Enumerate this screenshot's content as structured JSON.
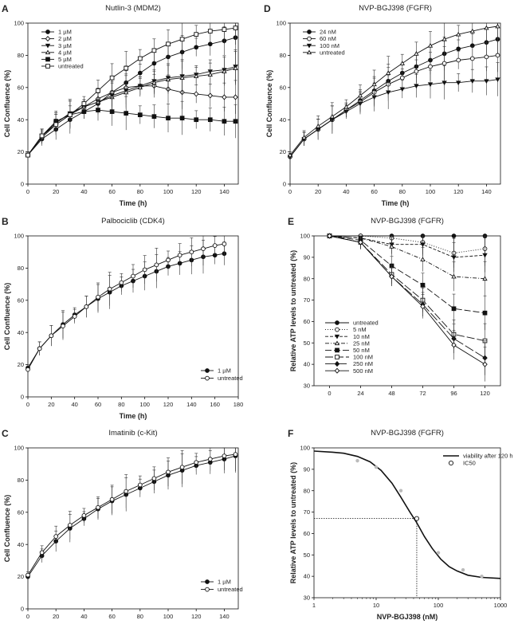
{
  "panels": [
    {
      "letter": "A",
      "chart_data": {
        "type": "line",
        "title": "Nutlin-3 (MDM2)",
        "xlabel": "Time (h)",
        "ylabel": "Cell Confluence (%)",
        "xlim": [
          0,
          150
        ],
        "ylim": [
          0,
          100
        ],
        "xticks": [
          0,
          20,
          40,
          60,
          80,
          100,
          120,
          140
        ],
        "yticks": [
          0,
          20,
          40,
          60,
          80,
          100
        ],
        "legend_position": "top-left",
        "series": [
          {
            "name": "1 µM",
            "marker": "circle-filled",
            "x": [
              0,
              10,
              20,
              30,
              40,
              50,
              60,
              70,
              80,
              90,
              100,
              110,
              120,
              130,
              140,
              148
            ],
            "y": [
              18,
              28,
              34,
              40,
              45,
              50,
              57,
              63,
              69,
              75,
              79,
              82,
              85,
              87,
              89,
              91
            ]
          },
          {
            "name": "2 µM",
            "marker": "diamond-open",
            "x": [
              0,
              10,
              20,
              30,
              40,
              50,
              60,
              70,
              80,
              90,
              100,
              110,
              120,
              130,
              140,
              148
            ],
            "y": [
              18,
              29,
              37,
              43,
              48,
              53,
              57,
              60,
              61,
              61,
              59,
              57,
              56,
              55,
              54,
              54
            ]
          },
          {
            "name": "3 µM",
            "marker": "triangle-down-filled",
            "x": [
              0,
              10,
              20,
              30,
              40,
              50,
              60,
              70,
              80,
              90,
              100,
              110,
              120,
              130,
              140,
              148
            ],
            "y": [
              18,
              30,
              38,
              44,
              48,
              51,
              55,
              58,
              61,
              64,
              66,
              67,
              68,
              70,
              71,
              73
            ]
          },
          {
            "name": "4 µM",
            "marker": "triangle-up-open",
            "x": [
              0,
              10,
              20,
              30,
              40,
              50,
              60,
              70,
              80,
              90,
              100,
              110,
              120,
              130,
              140,
              148
            ],
            "y": [
              18,
              30,
              38,
              44,
              48,
              51,
              54,
              57,
              60,
              63,
              65,
              66,
              67,
              68,
              70,
              72
            ]
          },
          {
            "name": "5 µM",
            "marker": "square-filled",
            "x": [
              0,
              10,
              20,
              30,
              40,
              50,
              60,
              70,
              80,
              90,
              100,
              110,
              120,
              130,
              140,
              148
            ],
            "y": [
              18,
              30,
              39,
              43,
              45,
              46,
              45,
              44,
              43,
              42,
              41,
              41,
              40,
              40,
              39,
              39
            ]
          },
          {
            "name": "untreated",
            "marker": "square-open",
            "x": [
              0,
              10,
              20,
              30,
              40,
              50,
              60,
              70,
              80,
              90,
              100,
              110,
              120,
              130,
              140,
              148
            ],
            "y": [
              18,
              30,
              37,
              43,
              50,
              58,
              66,
              72,
              78,
              83,
              87,
              90,
              93,
              95,
              96,
              97
            ]
          }
        ]
      }
    },
    {
      "letter": "B",
      "chart_data": {
        "type": "line",
        "title": "Palbociclib (CDK4)",
        "xlabel": "Time (h)",
        "ylabel": "Cell Confluence (%)",
        "xlim": [
          0,
          180
        ],
        "ylim": [
          0,
          100
        ],
        "xticks": [
          0,
          20,
          40,
          60,
          80,
          100,
          120,
          140,
          160,
          180
        ],
        "yticks": [
          0,
          20,
          40,
          60,
          80,
          100
        ],
        "legend_position": "bottom-right",
        "series": [
          {
            "name": "1 µM",
            "marker": "circle-filled",
            "x": [
              0,
              10,
              20,
              30,
              40,
              50,
              60,
              70,
              80,
              90,
              100,
              110,
              120,
              130,
              140,
              150,
              160,
              168
            ],
            "y": [
              18,
              30,
              38,
              45,
              51,
              56,
              61,
              65,
              69,
              72,
              75,
              78,
              81,
              83,
              85,
              87,
              88,
              89
            ]
          },
          {
            "name": "untreated",
            "marker": "circle-open",
            "x": [
              0,
              10,
              20,
              30,
              40,
              50,
              60,
              70,
              80,
              90,
              100,
              110,
              120,
              130,
              140,
              150,
              160,
              168
            ],
            "y": [
              17,
              30,
              38,
              44,
              50,
              56,
              62,
              67,
              71,
              75,
              79,
              82,
              85,
              88,
              90,
              92,
              94,
              95
            ]
          }
        ]
      }
    },
    {
      "letter": "C",
      "chart_data": {
        "type": "line",
        "title": "Imatinib (c-Kit)",
        "xlabel": "Time (h)",
        "ylabel": "Cell Confluence (%)",
        "xlim": [
          0,
          150
        ],
        "ylim": [
          0,
          100
        ],
        "xticks": [
          0,
          20,
          40,
          60,
          80,
          100,
          120,
          140
        ],
        "yticks": [
          0,
          20,
          40,
          60,
          80,
          100
        ],
        "legend_position": "bottom-right",
        "series": [
          {
            "name": "1 µM",
            "marker": "circle-filled",
            "x": [
              0,
              10,
              20,
              30,
              40,
              50,
              60,
              70,
              80,
              90,
              100,
              110,
              120,
              130,
              140,
              148
            ],
            "y": [
              20,
              33,
              42,
              50,
              56,
              62,
              67,
              71,
              75,
              79,
              83,
              86,
              89,
              91,
              93,
              95
            ]
          },
          {
            "name": "untreated",
            "marker": "circle-open",
            "x": [
              0,
              10,
              20,
              30,
              40,
              50,
              60,
              70,
              80,
              90,
              100,
              110,
              120,
              130,
              140,
              148
            ],
            "y": [
              21,
              35,
              45,
              52,
              58,
              63,
              68,
              73,
              77,
              81,
              85,
              88,
              91,
              93,
              95,
              96
            ]
          }
        ]
      }
    },
    {
      "letter": "D",
      "chart_data": {
        "type": "line",
        "title": "NVP-BGJ398 (FGFR)",
        "xlabel": "Time (h)",
        "ylabel": "Cell Confluence (%)",
        "xlim": [
          0,
          150
        ],
        "ylim": [
          0,
          100
        ],
        "xticks": [
          0,
          20,
          40,
          60,
          80,
          100,
          120,
          140
        ],
        "yticks": [
          0,
          20,
          40,
          60,
          80,
          100
        ],
        "legend_position": "top-left",
        "series": [
          {
            "name": "24 nM",
            "marker": "circle-filled",
            "x": [
              0,
              10,
              20,
              30,
              40,
              50,
              60,
              70,
              80,
              90,
              100,
              110,
              120,
              130,
              140,
              148
            ],
            "y": [
              17,
              28,
              34,
              40,
              46,
              52,
              58,
              64,
              69,
              73,
              77,
              81,
              84,
              86,
              88,
              90
            ]
          },
          {
            "name": "60 nM",
            "marker": "circle-open",
            "x": [
              0,
              10,
              20,
              30,
              40,
              50,
              60,
              70,
              80,
              90,
              100,
              110,
              120,
              130,
              140,
              148
            ],
            "y": [
              17,
              28,
              34,
              40,
              46,
              51,
              57,
              62,
              66,
              70,
              73,
              75,
              77,
              78,
              79,
              80
            ]
          },
          {
            "name": "100 nM",
            "marker": "triangle-down-filled",
            "x": [
              0,
              10,
              20,
              30,
              40,
              50,
              60,
              70,
              80,
              90,
              100,
              110,
              120,
              130,
              140,
              148
            ],
            "y": [
              17,
              28,
              34,
              40,
              45,
              50,
              54,
              57,
              59,
              61,
              62,
              63,
              63,
              64,
              64,
              65
            ]
          },
          {
            "name": "untreated",
            "marker": "triangle-up-open",
            "x": [
              0,
              10,
              20,
              30,
              40,
              50,
              60,
              70,
              80,
              90,
              100,
              110,
              120,
              130,
              140,
              148
            ],
            "y": [
              18,
              29,
              36,
              42,
              48,
              55,
              62,
              69,
              75,
              81,
              86,
              90,
              93,
              95,
              97,
              98
            ]
          }
        ]
      }
    },
    {
      "letter": "E",
      "chart_data": {
        "type": "line",
        "title": "NVP-BGJ398 (FGFR)",
        "xlabel": "",
        "ylabel": "Relative ATP levels to untreated (%)",
        "xlim": [
          -12,
          132
        ],
        "ylim": [
          30,
          100
        ],
        "xticks": [
          0,
          24,
          48,
          72,
          96,
          120
        ],
        "yticks": [
          30,
          40,
          50,
          60,
          70,
          80,
          90,
          100
        ],
        "legend_position": "bottom-left",
        "series": [
          {
            "name": "untreated",
            "marker": "circle-filled",
            "dash": "",
            "x": [
              0,
              24,
              48,
              72,
              96,
              120
            ],
            "y": [
              100,
              100,
              100,
              100,
              100,
              100
            ]
          },
          {
            "name": "5 nM",
            "marker": "circle-open",
            "dash": "1,2",
            "x": [
              0,
              24,
              48,
              72,
              96,
              120
            ],
            "y": [
              100,
              100,
              99,
              97,
              92,
              94
            ]
          },
          {
            "name": "10 nM",
            "marker": "triangle-down-filled",
            "dash": "4,2",
            "x": [
              0,
              24,
              48,
              72,
              96,
              120
            ],
            "y": [
              100,
              99,
              96,
              96,
              90,
              91
            ]
          },
          {
            "name": "25 nM",
            "marker": "triangle-up-open",
            "dash": "5,2,1,2",
            "x": [
              0,
              24,
              48,
              72,
              96,
              120
            ],
            "y": [
              100,
              99,
              95,
              89,
              81,
              80
            ]
          },
          {
            "name": "50 nM",
            "marker": "square-filled",
            "dash": "8,3",
            "x": [
              0,
              24,
              48,
              72,
              96,
              120
            ],
            "y": [
              100,
              98,
              86,
              77,
              66,
              64
            ]
          },
          {
            "name": "100 nM",
            "marker": "square-open",
            "dash": "10,3",
            "x": [
              0,
              24,
              48,
              72,
              96,
              120
            ],
            "y": [
              100,
              97,
              82,
              70,
              54,
              51
            ]
          },
          {
            "name": "250 nM",
            "marker": "diamond-filled",
            "dash": "12,3",
            "x": [
              0,
              24,
              48,
              72,
              96,
              120
            ],
            "y": [
              100,
              97,
              81,
              68,
              52,
              43
            ]
          },
          {
            "name": "500 nM",
            "marker": "diamond-open",
            "dash": "",
            "x": [
              0,
              24,
              48,
              72,
              96,
              120
            ],
            "y": [
              100,
              97,
              81,
              67,
              49,
              40
            ]
          }
        ]
      }
    },
    {
      "letter": "F",
      "chart_data": {
        "type": "scatter",
        "title": "NVP-BGJ398 (FGFR)",
        "xlabel": "NVP-BGJ398 (nM)",
        "ylabel": "Relative ATP levels to untreated (%)",
        "xscale": "log",
        "xlim": [
          1,
          1000
        ],
        "ylim": [
          30,
          100
        ],
        "xticks": [
          1,
          10,
          100,
          1000
        ],
        "yticks": [
          30,
          40,
          50,
          60,
          70,
          80,
          90,
          100
        ],
        "legend_position": "top-right",
        "series": [
          {
            "name": "viability after 120 h",
            "kind": "fit-curve",
            "x": [
              1,
              2,
              3,
              5,
              8,
              12,
              18,
              25,
              35,
              45,
              60,
              80,
              110,
              150,
              200,
              300,
              500,
              1000
            ],
            "y": [
              98.5,
              98,
              97.5,
              96,
              93.5,
              89.5,
              83.5,
              77,
              70,
              65,
              58.5,
              53,
              48,
              44.5,
              42.5,
              40.5,
              39.5,
              39
            ]
          },
          {
            "name": "",
            "kind": "data-points",
            "x": [
              5,
              10,
              25,
              100,
              250,
              500
            ],
            "y": [
              94,
              91,
              80,
              51,
              43,
              40
            ]
          },
          {
            "name": "IC50",
            "kind": "ic50-point",
            "x": [
              45
            ],
            "y": [
              67
            ]
          }
        ]
      }
    }
  ]
}
